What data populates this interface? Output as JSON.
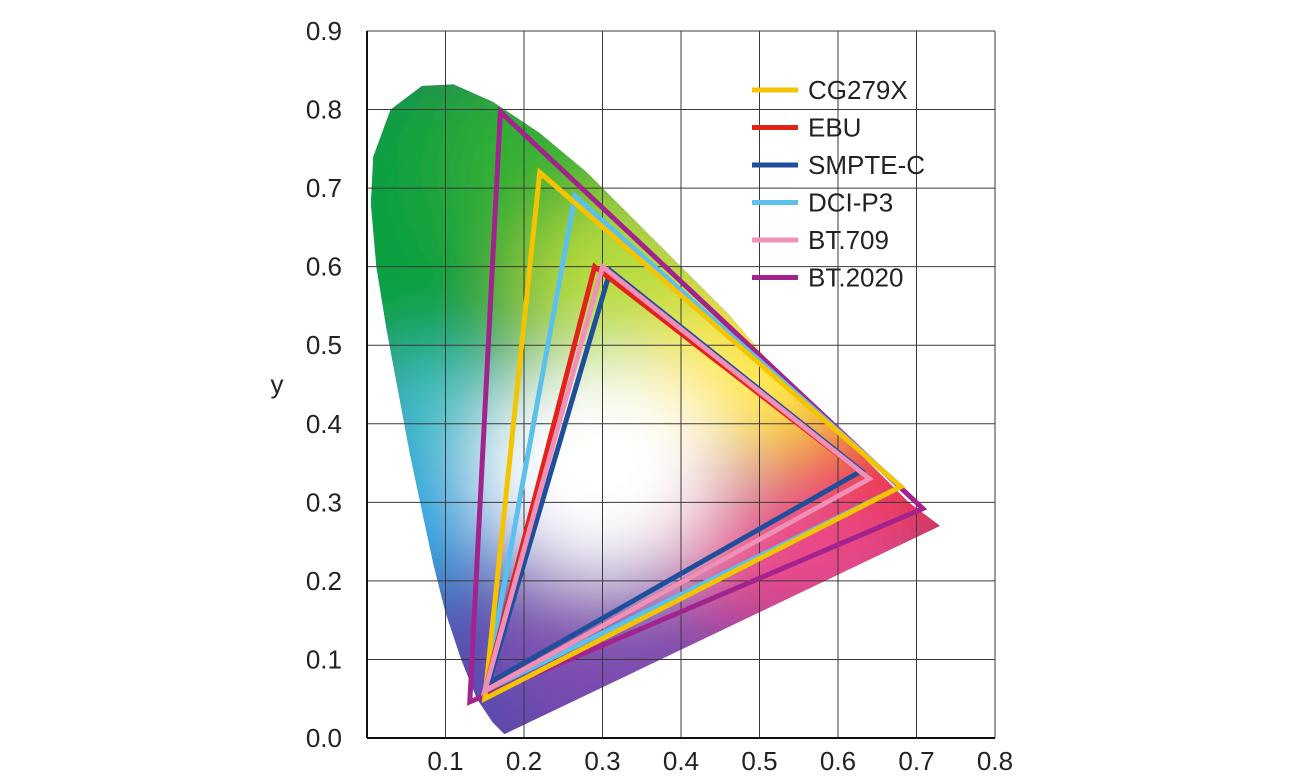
{
  "chart_data": {
    "type": "line",
    "title": "",
    "xlabel": "",
    "ylabel": "y",
    "xlim": [
      0,
      0.8
    ],
    "ylim": [
      0,
      0.9
    ],
    "grid": true,
    "x_ticks": [
      "0.1",
      "0.2",
      "0.3",
      "0.4",
      "0.5",
      "0.6",
      "0.7",
      "0.8"
    ],
    "y_ticks": [
      "0.0",
      "0.1",
      "0.2",
      "0.3",
      "0.4",
      "0.5",
      "0.6",
      "0.7",
      "0.8",
      "0.9"
    ],
    "x_tick_values": [
      0.1,
      0.2,
      0.3,
      0.4,
      0.5,
      0.6,
      0.7,
      0.8
    ],
    "y_tick_values": [
      0.0,
      0.1,
      0.2,
      0.3,
      0.4,
      0.5,
      0.6,
      0.7,
      0.8,
      0.9
    ],
    "legend_position": "top-right",
    "spectral_locus": [
      [
        0.175,
        0.005
      ],
      [
        0.16,
        0.02
      ],
      [
        0.14,
        0.05
      ],
      [
        0.12,
        0.1
      ],
      [
        0.1,
        0.16
      ],
      [
        0.085,
        0.22
      ],
      [
        0.07,
        0.29
      ],
      [
        0.055,
        0.36
      ],
      [
        0.04,
        0.44
      ],
      [
        0.025,
        0.52
      ],
      [
        0.012,
        0.6
      ],
      [
        0.005,
        0.68
      ],
      [
        0.008,
        0.74
      ],
      [
        0.03,
        0.8
      ],
      [
        0.07,
        0.83
      ],
      [
        0.11,
        0.832
      ],
      [
        0.16,
        0.81
      ],
      [
        0.22,
        0.77
      ],
      [
        0.28,
        0.72
      ],
      [
        0.34,
        0.66
      ],
      [
        0.4,
        0.6
      ],
      [
        0.46,
        0.54
      ],
      [
        0.52,
        0.47
      ],
      [
        0.58,
        0.41
      ],
      [
        0.64,
        0.35
      ],
      [
        0.69,
        0.3
      ],
      [
        0.73,
        0.27
      ]
    ],
    "series": [
      {
        "name": "CG279X",
        "color": "#f5c400",
        "points": [
          [
            0.68,
            0.32
          ],
          [
            0.22,
            0.72
          ],
          [
            0.15,
            0.05
          ]
        ]
      },
      {
        "name": "EBU",
        "color": "#e2231a",
        "points": [
          [
            0.64,
            0.33
          ],
          [
            0.29,
            0.6
          ],
          [
            0.15,
            0.06
          ]
        ]
      },
      {
        "name": "SMPTE-C",
        "color": "#1f4e9a",
        "points": [
          [
            0.63,
            0.34
          ],
          [
            0.31,
            0.595
          ],
          [
            0.155,
            0.07
          ]
        ]
      },
      {
        "name": "DCI-P3",
        "color": "#5bc0eb",
        "points": [
          [
            0.68,
            0.32
          ],
          [
            0.265,
            0.69
          ],
          [
            0.15,
            0.06
          ]
        ]
      },
      {
        "name": "BT.709",
        "color": "#f08fb8",
        "points": [
          [
            0.64,
            0.33
          ],
          [
            0.3,
            0.6
          ],
          [
            0.15,
            0.06
          ]
        ]
      },
      {
        "name": "BT.2020",
        "color": "#a3238e",
        "points": [
          [
            0.708,
            0.292
          ],
          [
            0.17,
            0.797
          ],
          [
            0.131,
            0.046
          ]
        ]
      }
    ]
  }
}
